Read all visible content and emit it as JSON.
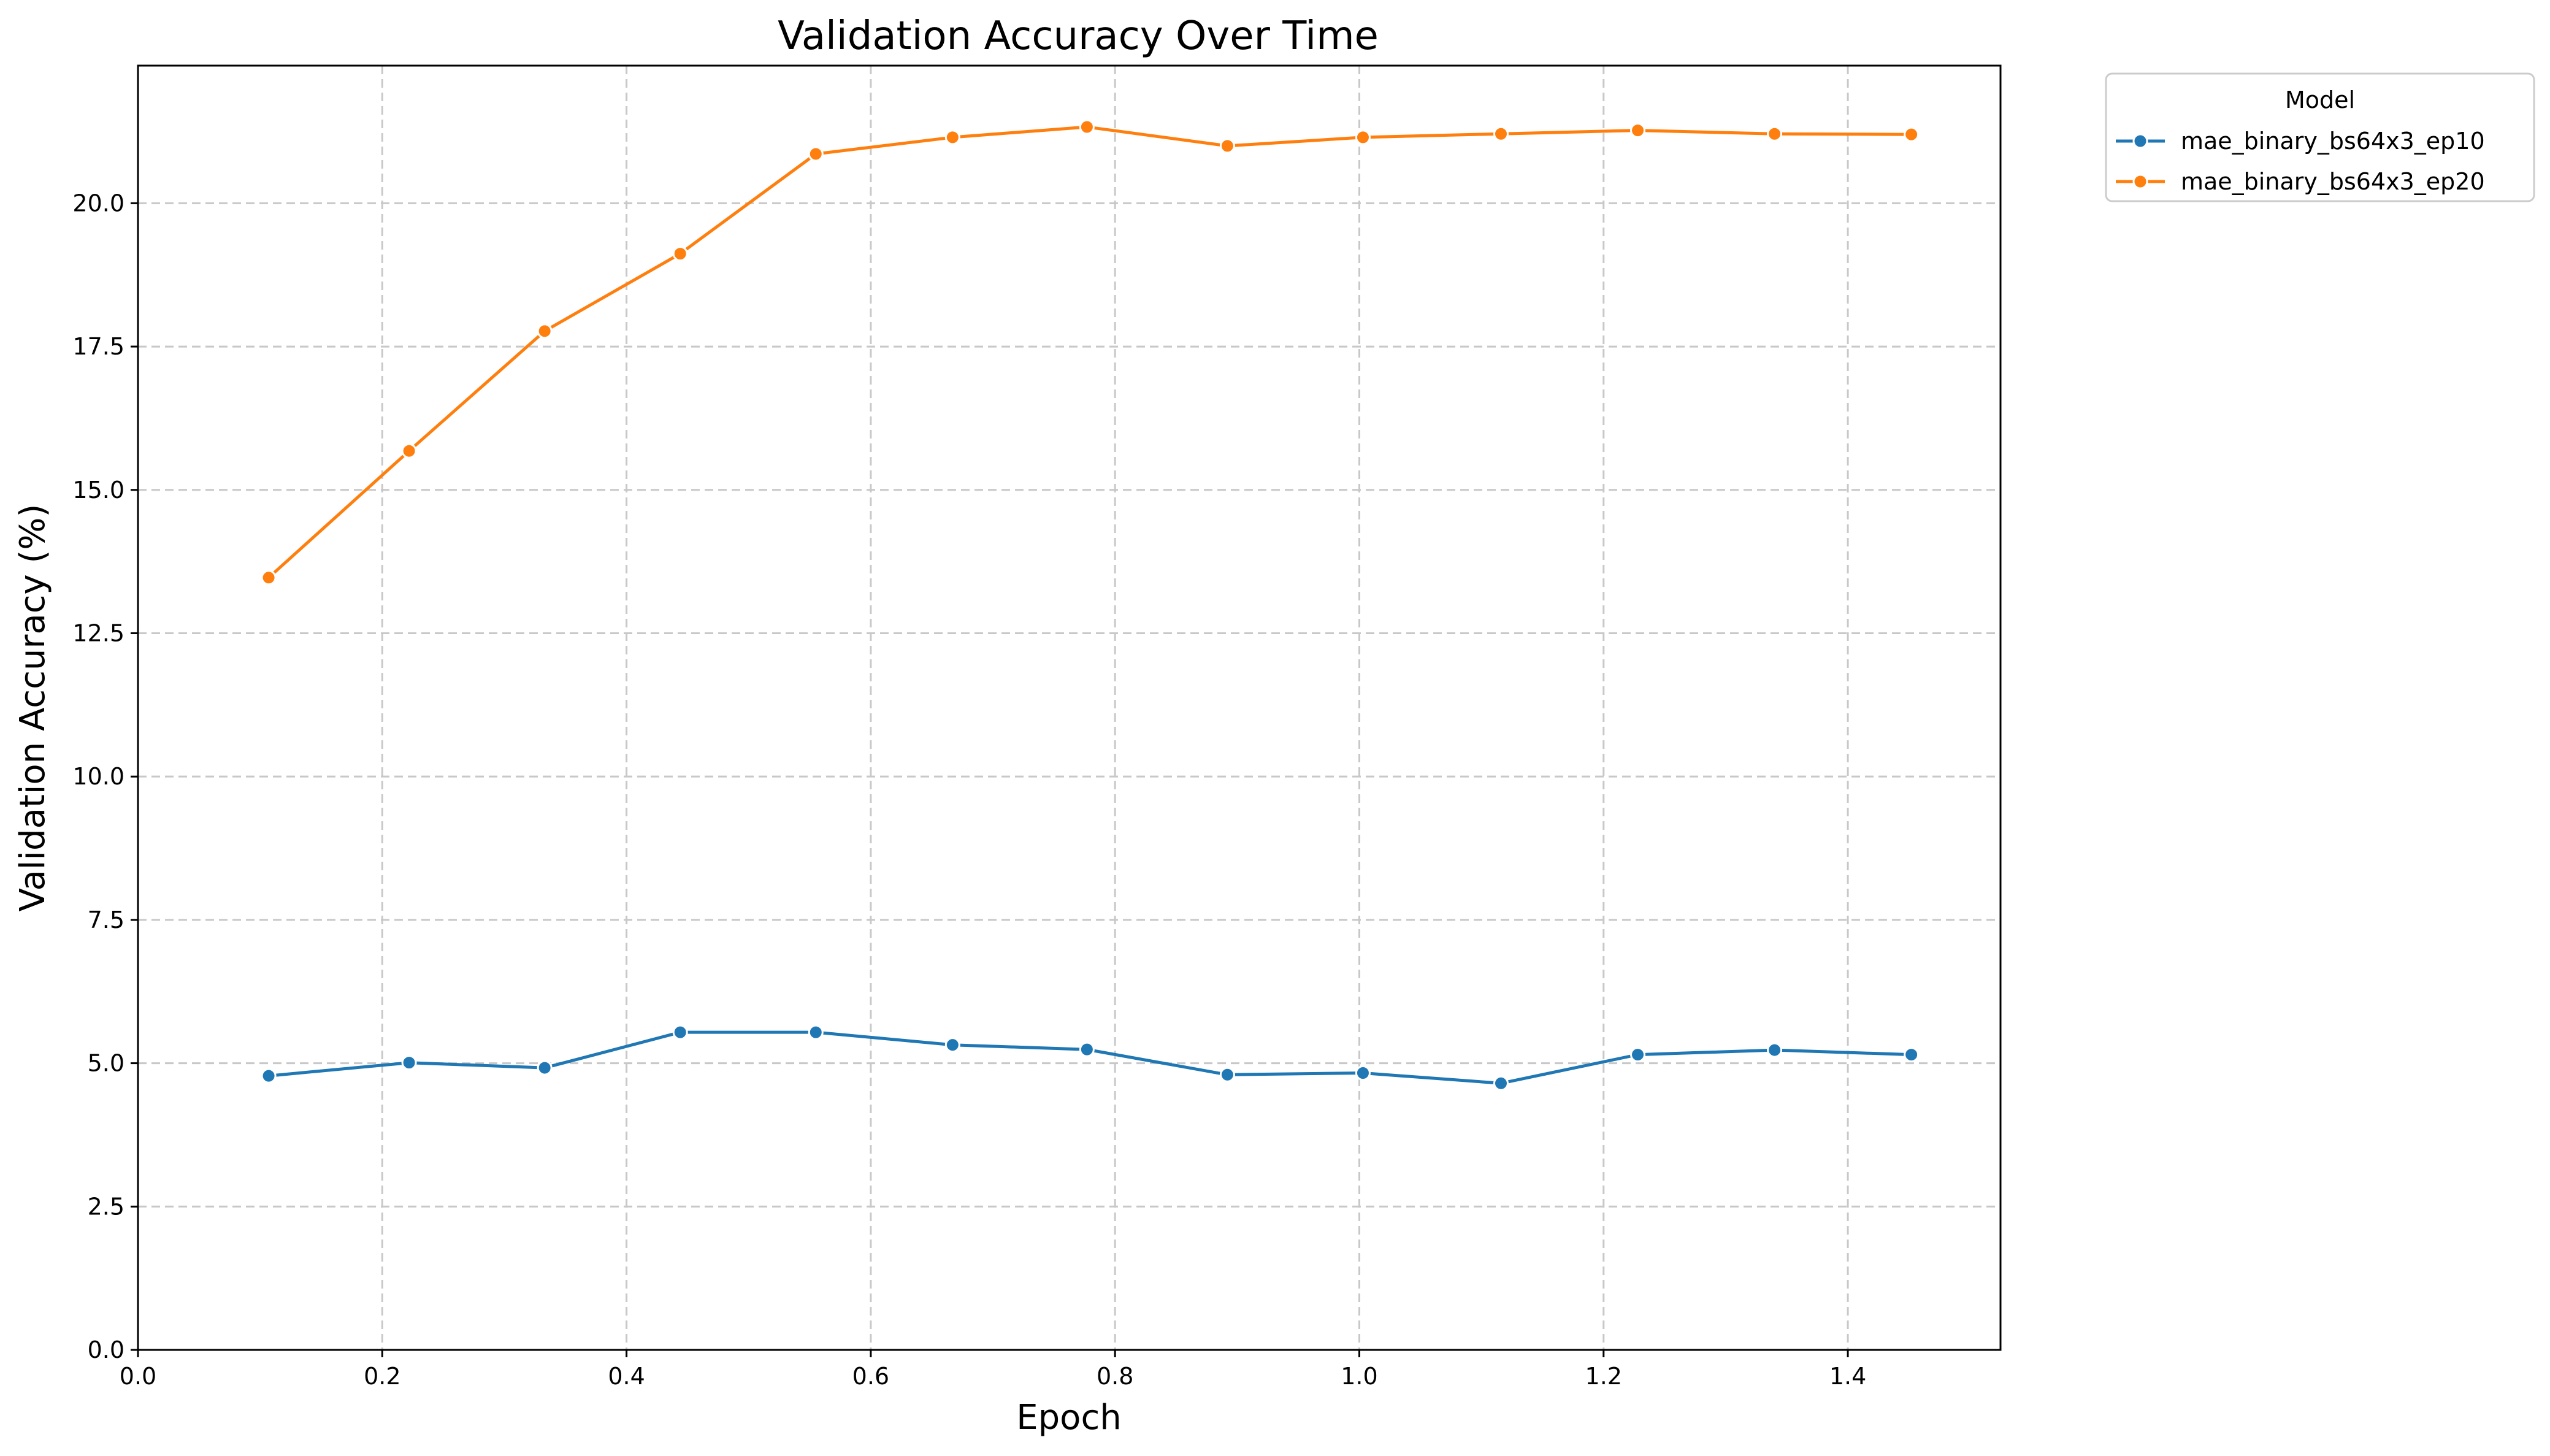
{
  "chart_data": {
    "type": "line",
    "title": "Validation Accuracy Over Time",
    "xlabel": "Epoch",
    "ylabel": "Validation Accuracy (%)",
    "xlim": [
      0.0,
      1.525
    ],
    "ylim": [
      0.0,
      22.4
    ],
    "xticks": [
      "0.0",
      "0.2",
      "0.4",
      "0.6",
      "0.8",
      "1.0",
      "1.2",
      "1.4"
    ],
    "yticks": [
      "0.0",
      "2.5",
      "5.0",
      "7.5",
      "10.0",
      "12.5",
      "15.0",
      "17.5",
      "20.0"
    ],
    "grid": true,
    "legend": {
      "title": "Model",
      "placement": "outside-top-right"
    },
    "series": [
      {
        "name": "mae_binary_bs64x3_ep10",
        "color": "#1f77b4",
        "x": [
          0.107,
          0.222,
          0.333,
          0.444,
          0.555,
          0.667,
          0.777,
          0.892,
          1.003,
          1.116,
          1.228,
          1.34,
          1.452
        ],
        "y": [
          4.78,
          5.01,
          4.92,
          5.54,
          5.54,
          5.32,
          5.24,
          4.8,
          4.83,
          4.65,
          5.15,
          5.23,
          5.15
        ]
      },
      {
        "name": "mae_binary_bs64x3_ep20",
        "color": "#ff7f0e",
        "x": [
          0.107,
          0.222,
          0.333,
          0.444,
          0.555,
          0.667,
          0.777,
          0.892,
          1.003,
          1.116,
          1.228,
          1.34,
          1.452
        ],
        "y": [
          13.47,
          15.68,
          17.77,
          19.12,
          20.86,
          21.15,
          21.33,
          21.0,
          21.15,
          21.21,
          21.27,
          21.21,
          21.2
        ]
      }
    ]
  }
}
